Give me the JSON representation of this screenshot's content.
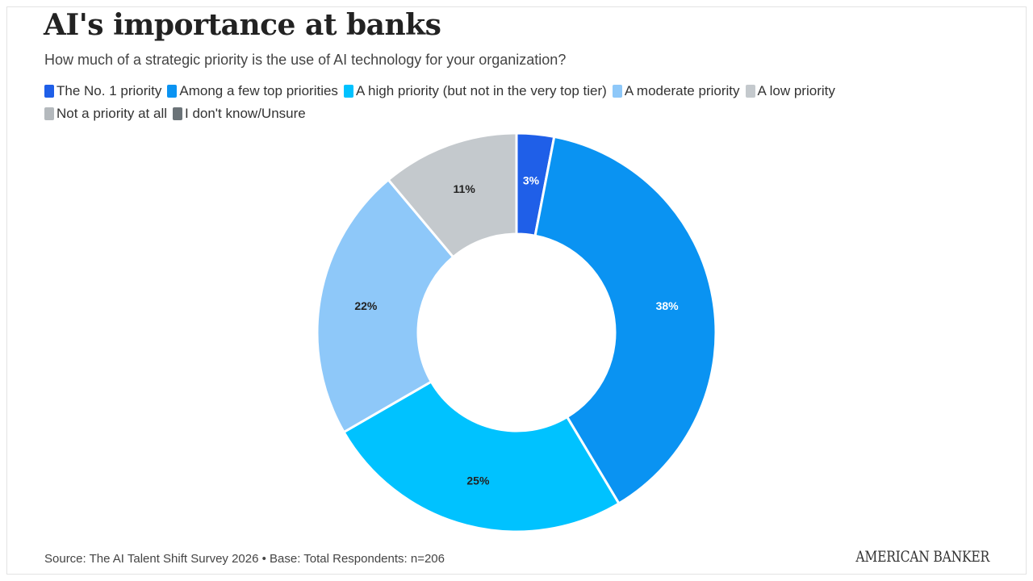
{
  "header": {
    "title": "AI's importance at banks",
    "subtitle": "How much of a strategic priority is the use of AI technology for your organization?"
  },
  "chart_data": {
    "type": "pie",
    "donut": true,
    "categories": [
      "The No. 1 priority",
      "Among a few top priorities",
      "A high priority (but not in the very top tier)",
      "A moderate priority",
      "A low priority",
      "Not a priority at all",
      "I don't know/Unsure"
    ],
    "values": [
      3,
      38,
      25,
      22,
      11,
      0,
      0
    ],
    "data_labels": [
      "3%",
      "38%",
      "25%",
      "22%",
      "11%",
      "",
      ""
    ],
    "colors": [
      "#1f5fe8",
      "#0a93f2",
      "#00c2ff",
      "#8ec8f9",
      "#c4c9cd",
      "#b4b9bd",
      "#6b7378"
    ],
    "label_colors": [
      "#ffffff",
      "#ffffff",
      "#222222",
      "#222222",
      "#222222",
      "#222222",
      "#222222"
    ],
    "legend_placement": "top"
  },
  "footer": {
    "source": "Source: The AI Talent Shift Survey 2026 • Base: Total Respondents: n=206",
    "logo_text": "AMERICAN BANKER"
  }
}
